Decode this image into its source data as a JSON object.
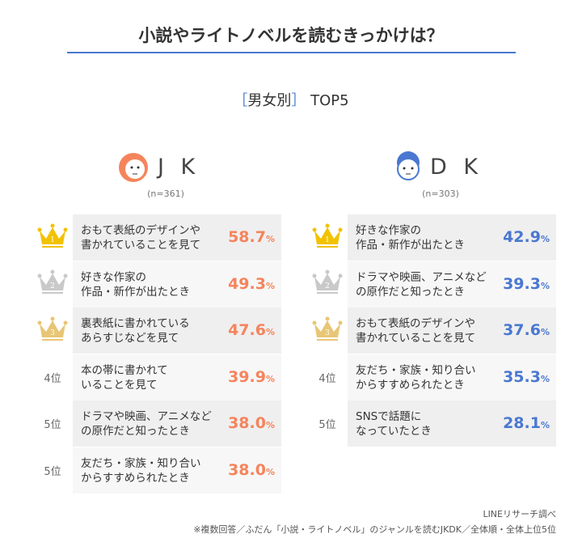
{
  "title": "小説やライトノベルを読むきっかけは？",
  "subtitle": {
    "open": "［",
    "label": "男女別",
    "close": "］",
    "suffix": "TOP5"
  },
  "colors": {
    "jk": "#f5845c",
    "dk": "#4a78d0",
    "gold": "#f2c200",
    "silver": "#c9c9c9",
    "bronze": "#e8c676"
  },
  "groups": [
    {
      "name": "J K",
      "n": "(n=361)",
      "icon": "girl-face-icon",
      "items": [
        {
          "rank": "1",
          "icon": "gold-crown-icon",
          "label": "おもて表紙のデザインや\n書かれていることを見て",
          "value": "58.7",
          "unit": "%"
        },
        {
          "rank": "2",
          "icon": "silver-crown-icon",
          "label": "好きな作家の\n作品・新作が出たとき",
          "value": "49.3",
          "unit": "%"
        },
        {
          "rank": "3",
          "icon": "bronze-crown-icon",
          "label": "裏表紙に書かれている\nあらすじなどを見て",
          "value": "47.6",
          "unit": "%"
        },
        {
          "rank": "4位",
          "label": "本の帯に書かれて\nいることを見て",
          "value": "39.9",
          "unit": "%"
        },
        {
          "rank": "5位",
          "label": "ドラマや映画、アニメなど\nの原作だと知ったとき",
          "value": "38.0",
          "unit": "%"
        },
        {
          "rank": "5位",
          "label": "友だち・家族・知り合い\nからすすめられたとき",
          "value": "38.0",
          "unit": "%"
        }
      ]
    },
    {
      "name": "D K",
      "n": "(n=303)",
      "icon": "boy-face-icon",
      "items": [
        {
          "rank": "1",
          "icon": "gold-crown-icon",
          "label": "好きな作家の\n作品・新作が出たとき",
          "value": "42.9",
          "unit": "%"
        },
        {
          "rank": "2",
          "icon": "silver-crown-icon",
          "label": "ドラマや映画、アニメなど\nの原作だと知ったとき",
          "value": "39.3",
          "unit": "%"
        },
        {
          "rank": "3",
          "icon": "bronze-crown-icon",
          "label": "おもて表紙のデザインや\n書かれていることを見て",
          "value": "37.6",
          "unit": "%"
        },
        {
          "rank": "4位",
          "label": "友だち・家族・知り合い\nからすすめられたとき",
          "value": "35.3",
          "unit": "%"
        },
        {
          "rank": "5位",
          "label": "SNSで話題に\nなっていたとき",
          "value": "28.1",
          "unit": "%"
        }
      ]
    }
  ],
  "footer": {
    "source": "LINEリサーチ調べ",
    "note": "※複数回答／ふだん「小説・ライトノベル」のジャンルを読むJKDK／全体順・全体上位5位"
  }
}
